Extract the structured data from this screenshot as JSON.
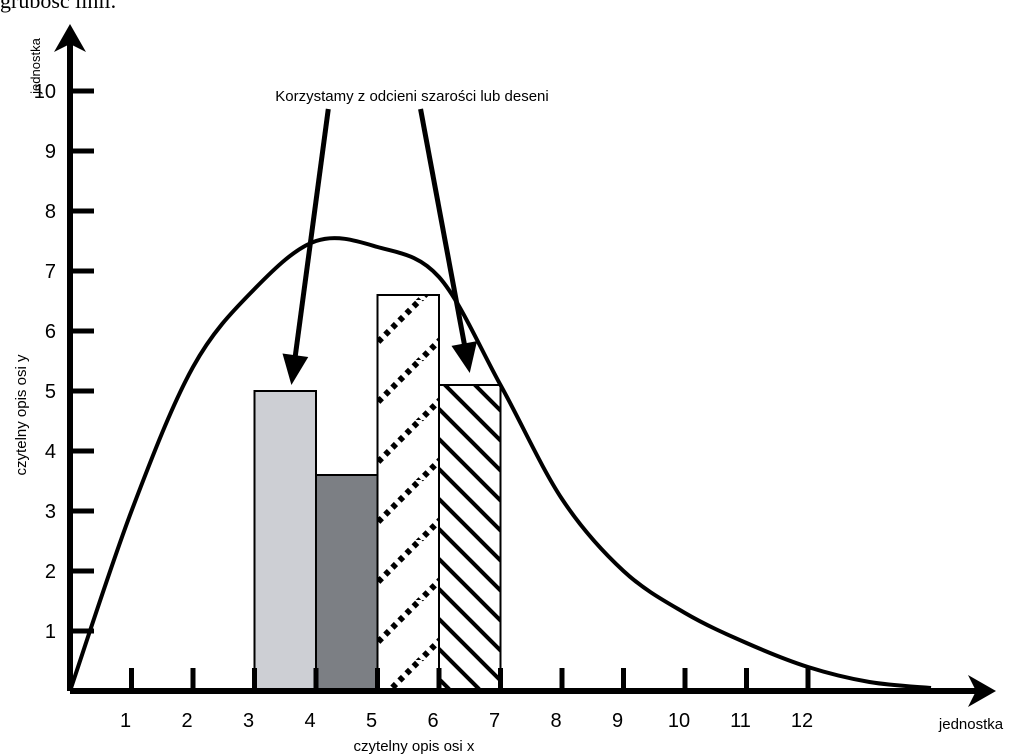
{
  "page": {
    "caption_fragment": "grubość linii."
  },
  "chart_data": {
    "type": "bar",
    "title": "",
    "xlabel": "czytelny opis osi x",
    "ylabel": "czytelny opis osi y",
    "x_unit_label": "jednostka",
    "y_unit_label": "jednostka",
    "x_ticks": [
      "1",
      "2",
      "3",
      "4",
      "5",
      "6",
      "7",
      "8",
      "9",
      "10",
      "11",
      "12"
    ],
    "y_ticks": [
      "1",
      "2",
      "3",
      "4",
      "5",
      "6",
      "7",
      "8",
      "9",
      "10"
    ],
    "xlim": [
      0,
      15
    ],
    "ylim": [
      0,
      11
    ],
    "grid": false,
    "legend": "none",
    "annotation": "Korzystamy z odcieni szarości lub deseni",
    "bars": [
      {
        "x_start": 3,
        "x_end": 4,
        "value": 5.0,
        "fill": "light-gray",
        "color": "#cdcfd4"
      },
      {
        "x_start": 4,
        "x_end": 5,
        "value": 3.6,
        "fill": "dark-gray",
        "color": "#7c7f84"
      },
      {
        "x_start": 5,
        "x_end": 6,
        "value": 6.6,
        "fill": "dotted-diagonal",
        "color": "#000000"
      },
      {
        "x_start": 6,
        "x_end": 7,
        "value": 5.1,
        "fill": "diagonal-hatch",
        "color": "#000000"
      }
    ],
    "curve": {
      "x": [
        0,
        1,
        2,
        3,
        4,
        5,
        6,
        7,
        8,
        9,
        10,
        11,
        12,
        13,
        14
      ],
      "y": [
        0,
        3.0,
        5.4,
        6.7,
        7.5,
        7.4,
        6.9,
        5.1,
        3.2,
        2.0,
        1.3,
        0.8,
        0.4,
        0.15,
        0.05
      ]
    },
    "arrows": [
      {
        "from": [
          4.2,
          9.7
        ],
        "to": [
          3.6,
          5.1
        ]
      },
      {
        "from": [
          5.7,
          9.7
        ],
        "to": [
          6.5,
          5.3
        ]
      }
    ]
  }
}
